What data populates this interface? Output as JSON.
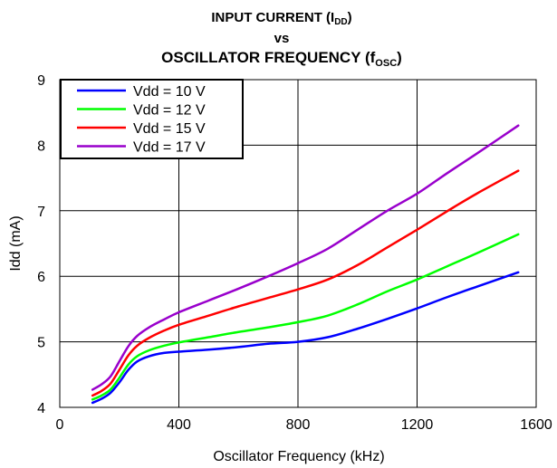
{
  "chart_data": {
    "type": "line",
    "title_line1": "INPUT CURRENT (I",
    "title_line1_sub": "DD",
    "title_line1_end": ")",
    "title_line2": "vs",
    "title_line3": "OSCILLATOR FREQUENCY (f",
    "title_line3_sub": "OSC",
    "title_line3_end": ")",
    "xlabel": "Oscillator Frequency (kHz)",
    "ylabel": "Idd (mA)",
    "xlim": [
      0,
      1600
    ],
    "ylim": [
      4,
      9
    ],
    "xticks": [
      0,
      400,
      800,
      1200,
      1600
    ],
    "yticks": [
      4,
      5,
      6,
      7,
      8,
      9
    ],
    "grid": true,
    "legend_position": "top-left",
    "series": [
      {
        "name": "Vdd = 10 V",
        "color": "#0000ff",
        "x": [
          110,
          140,
          170,
          200,
          230,
          260,
          300,
          350,
          400,
          500,
          600,
          700,
          800,
          900,
          1000,
          1100,
          1200,
          1300,
          1400,
          1540
        ],
        "y": [
          4.07,
          4.13,
          4.22,
          4.38,
          4.57,
          4.7,
          4.78,
          4.83,
          4.85,
          4.88,
          4.92,
          4.97,
          5.0,
          5.07,
          5.2,
          5.35,
          5.51,
          5.68,
          5.84,
          6.06
        ]
      },
      {
        "name": "Vdd = 12 V",
        "color": "#00ff00",
        "x": [
          110,
          140,
          170,
          200,
          230,
          260,
          300,
          350,
          400,
          500,
          600,
          700,
          800,
          900,
          1000,
          1100,
          1200,
          1300,
          1400,
          1540
        ],
        "y": [
          4.12,
          4.18,
          4.27,
          4.45,
          4.65,
          4.78,
          4.87,
          4.94,
          4.99,
          5.07,
          5.15,
          5.22,
          5.3,
          5.4,
          5.57,
          5.77,
          5.95,
          6.15,
          6.35,
          6.64
        ]
      },
      {
        "name": "Vdd = 15 V",
        "color": "#ff0000",
        "x": [
          110,
          140,
          170,
          200,
          230,
          260,
          300,
          350,
          400,
          500,
          600,
          700,
          800,
          900,
          1000,
          1100,
          1200,
          1300,
          1400,
          1540
        ],
        "y": [
          4.18,
          4.25,
          4.36,
          4.57,
          4.79,
          4.94,
          5.06,
          5.17,
          5.26,
          5.4,
          5.54,
          5.67,
          5.8,
          5.95,
          6.17,
          6.44,
          6.71,
          6.99,
          7.26,
          7.61
        ]
      },
      {
        "name": "Vdd = 17 V",
        "color": "#9900cc",
        "x": [
          110,
          140,
          170,
          200,
          230,
          260,
          300,
          350,
          400,
          500,
          600,
          700,
          800,
          900,
          1000,
          1100,
          1200,
          1300,
          1400,
          1540
        ],
        "y": [
          4.27,
          4.35,
          4.47,
          4.7,
          4.93,
          5.09,
          5.22,
          5.34,
          5.45,
          5.63,
          5.81,
          6.0,
          6.2,
          6.42,
          6.71,
          7.0,
          7.26,
          7.57,
          7.87,
          8.3
        ]
      }
    ]
  }
}
